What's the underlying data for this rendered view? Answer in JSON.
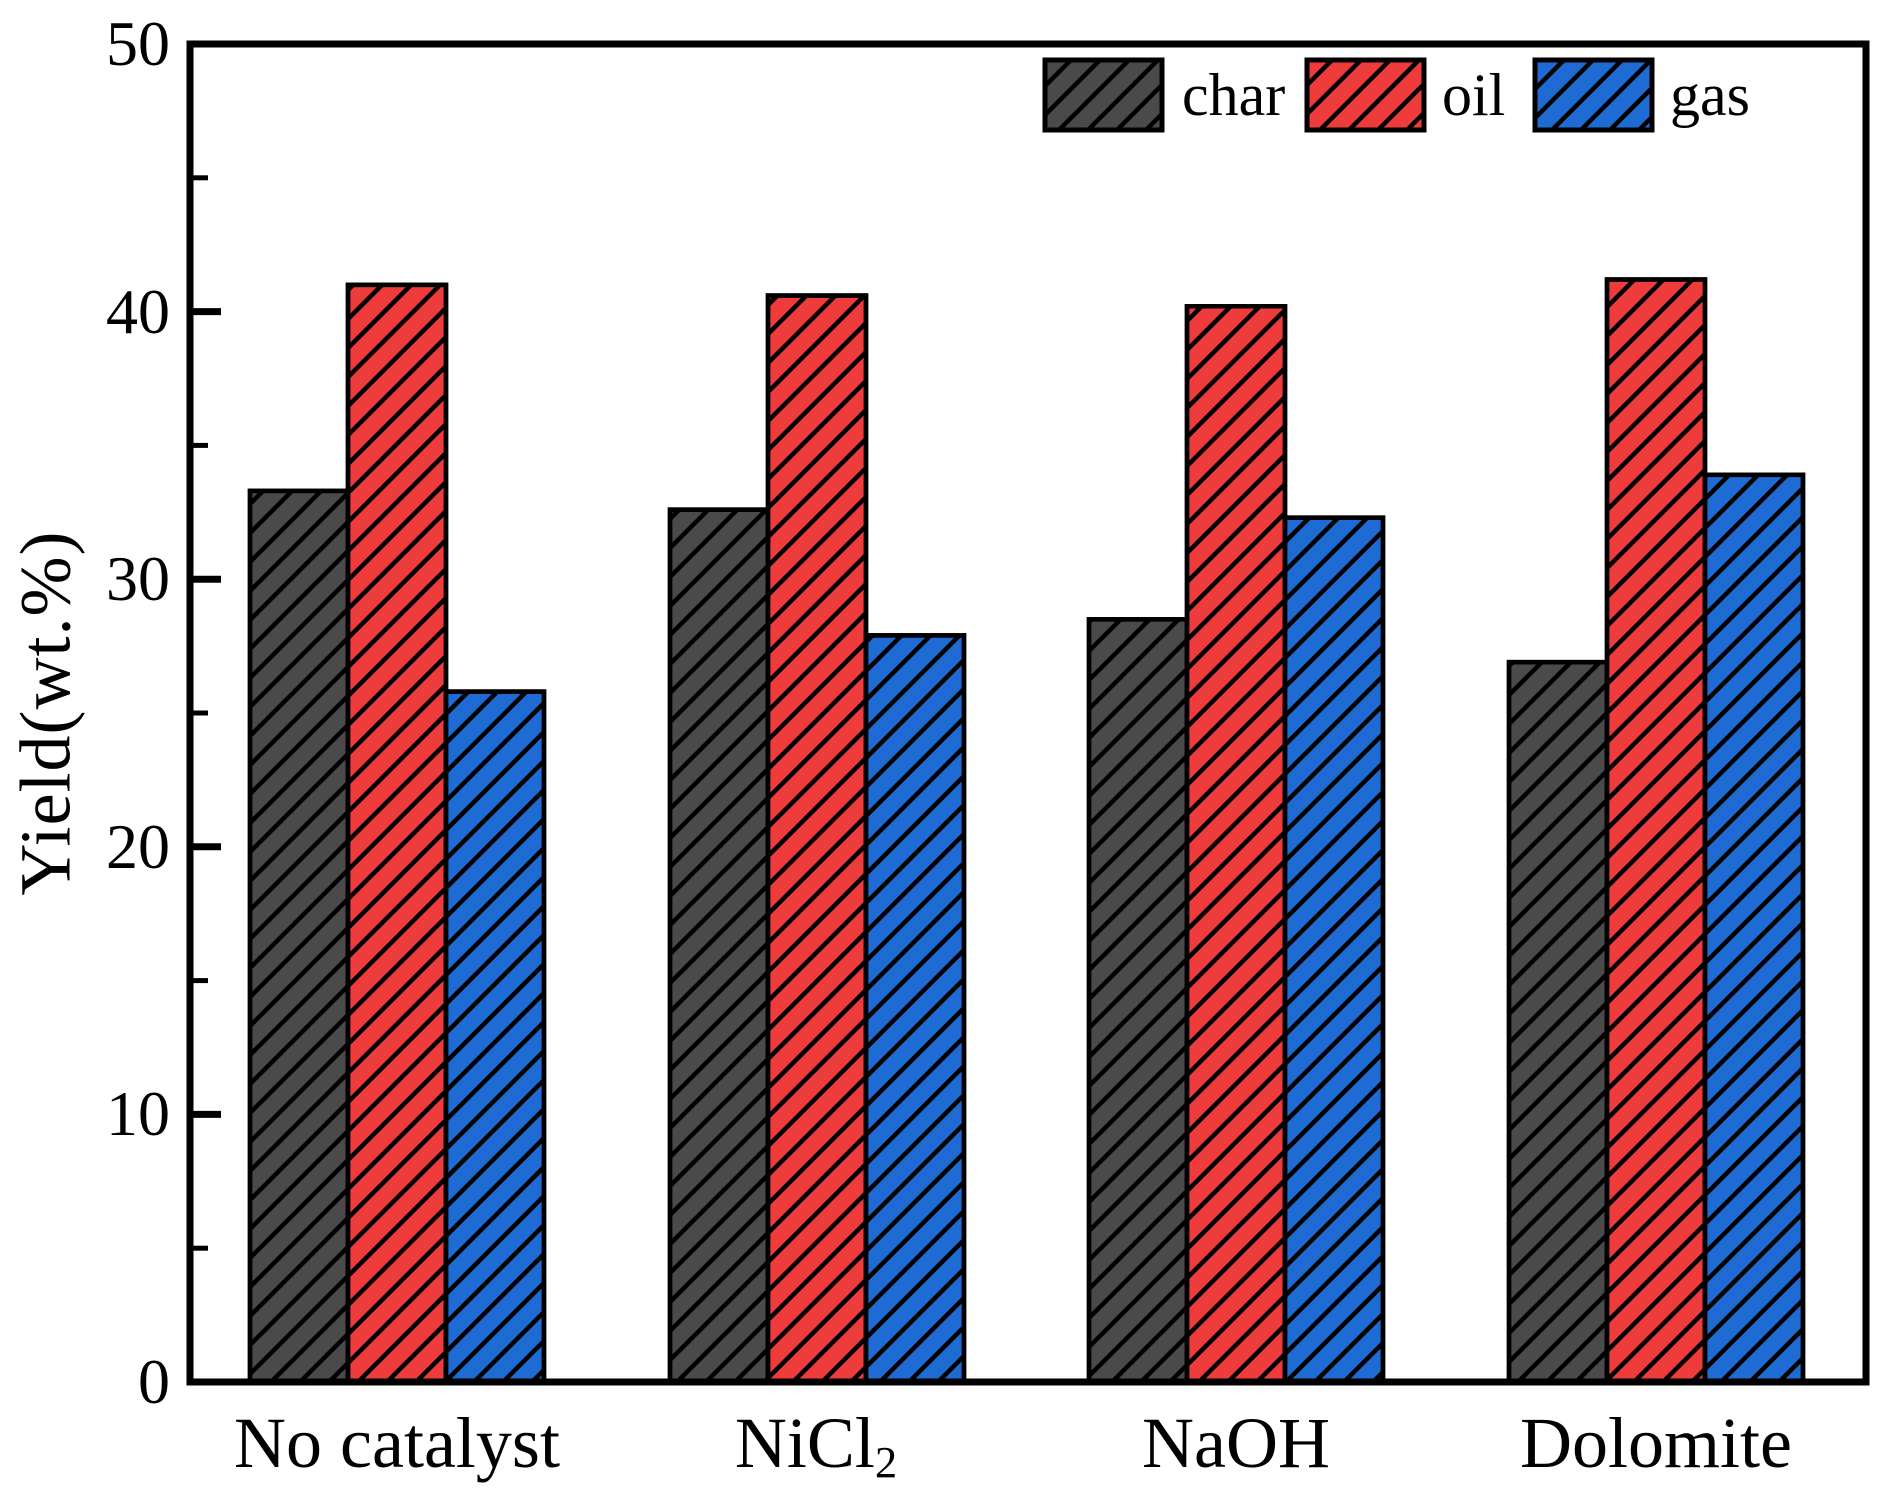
{
  "figure": {
    "background": "#ffffff",
    "frame_color": "#000000"
  },
  "chart_data": {
    "type": "bar",
    "title": "",
    "xlabel": "",
    "ylabel": "Yield(wt.%)",
    "ylim": [
      0,
      50
    ],
    "grid": false,
    "yticks_major": [
      0,
      10,
      20,
      30,
      40,
      50
    ],
    "yticks_minor": [
      5,
      15,
      25,
      35,
      45
    ],
    "ytick_labels": [
      "0",
      "10",
      "20",
      "30",
      "40",
      "50"
    ],
    "categories": [
      "No catalyst",
      "NiCl2",
      "NaOH",
      "Dolomite"
    ],
    "categories_display": [
      {
        "base": "No catalyst",
        "sub": ""
      },
      {
        "base": "NiCl",
        "sub": "2"
      },
      {
        "base": "NaOH",
        "sub": ""
      },
      {
        "base": "Dolomite",
        "sub": ""
      }
    ],
    "series": [
      {
        "name": "char",
        "color": "#4a4a4a",
        "hatch": "/",
        "values": [
          33.3,
          32.6,
          28.5,
          26.9
        ]
      },
      {
        "name": "oil",
        "color": "#ee3b3b",
        "hatch": "/",
        "values": [
          41.0,
          40.6,
          40.2,
          41.2
        ]
      },
      {
        "name": "gas",
        "color": "#1f6bd4",
        "hatch": "/",
        "values": [
          25.8,
          27.9,
          32.3,
          33.9
        ]
      }
    ],
    "bar_edge_color": "#000000",
    "legend_position": "top-inside"
  }
}
